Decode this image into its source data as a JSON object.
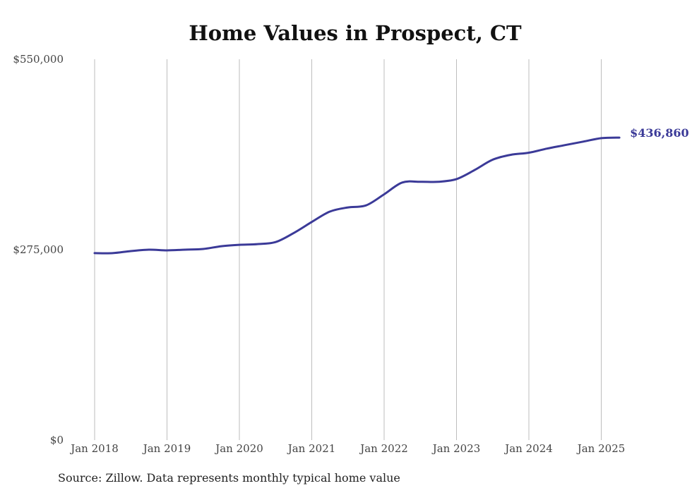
{
  "chart_data": {
    "type": "line",
    "title": "Home Values in Prospect, CT",
    "xlabel": "",
    "ylabel": "",
    "ylim": [
      0,
      550000
    ],
    "y_ticks": [
      0,
      275000,
      550000
    ],
    "y_tick_labels": [
      "$0",
      "$275,000",
      "$550,000"
    ],
    "x_ticks": [
      "2018-01",
      "2019-01",
      "2020-01",
      "2021-01",
      "2022-01",
      "2023-01",
      "2024-01",
      "2025-01"
    ],
    "x_tick_labels": [
      "Jan 2018",
      "Jan 2019",
      "Jan 2020",
      "Jan 2021",
      "Jan 2022",
      "Jan 2023",
      "Jan 2024",
      "Jan 2025"
    ],
    "xlim": [
      "2018-01",
      "2025-04"
    ],
    "grid": "vertical",
    "line_color": "#3b3a98",
    "series": [
      {
        "x": [
          "2018-01",
          "2018-04",
          "2018-07",
          "2018-10",
          "2019-01",
          "2019-04",
          "2019-07",
          "2019-10",
          "2020-01",
          "2020-04",
          "2020-07",
          "2020-10",
          "2021-01",
          "2021-04",
          "2021-07",
          "2021-10",
          "2022-01",
          "2022-04",
          "2022-07",
          "2022-10",
          "2023-01",
          "2023-04",
          "2023-07",
          "2023-10",
          "2024-01",
          "2024-04",
          "2024-07",
          "2024-10",
          "2025-01",
          "2025-04"
        ],
        "values": [
          270000,
          270000,
          273000,
          275000,
          274000,
          275000,
          276000,
          280000,
          282000,
          283000,
          286000,
          299000,
          315000,
          330000,
          336000,
          339000,
          355000,
          372000,
          373000,
          373000,
          377000,
          390000,
          405000,
          412000,
          415000,
          421000,
          426000,
          431000,
          436000,
          436860
        ]
      }
    ],
    "end_label": "$436,860",
    "source": "Source: Zillow. Data represents monthly typical home value"
  }
}
